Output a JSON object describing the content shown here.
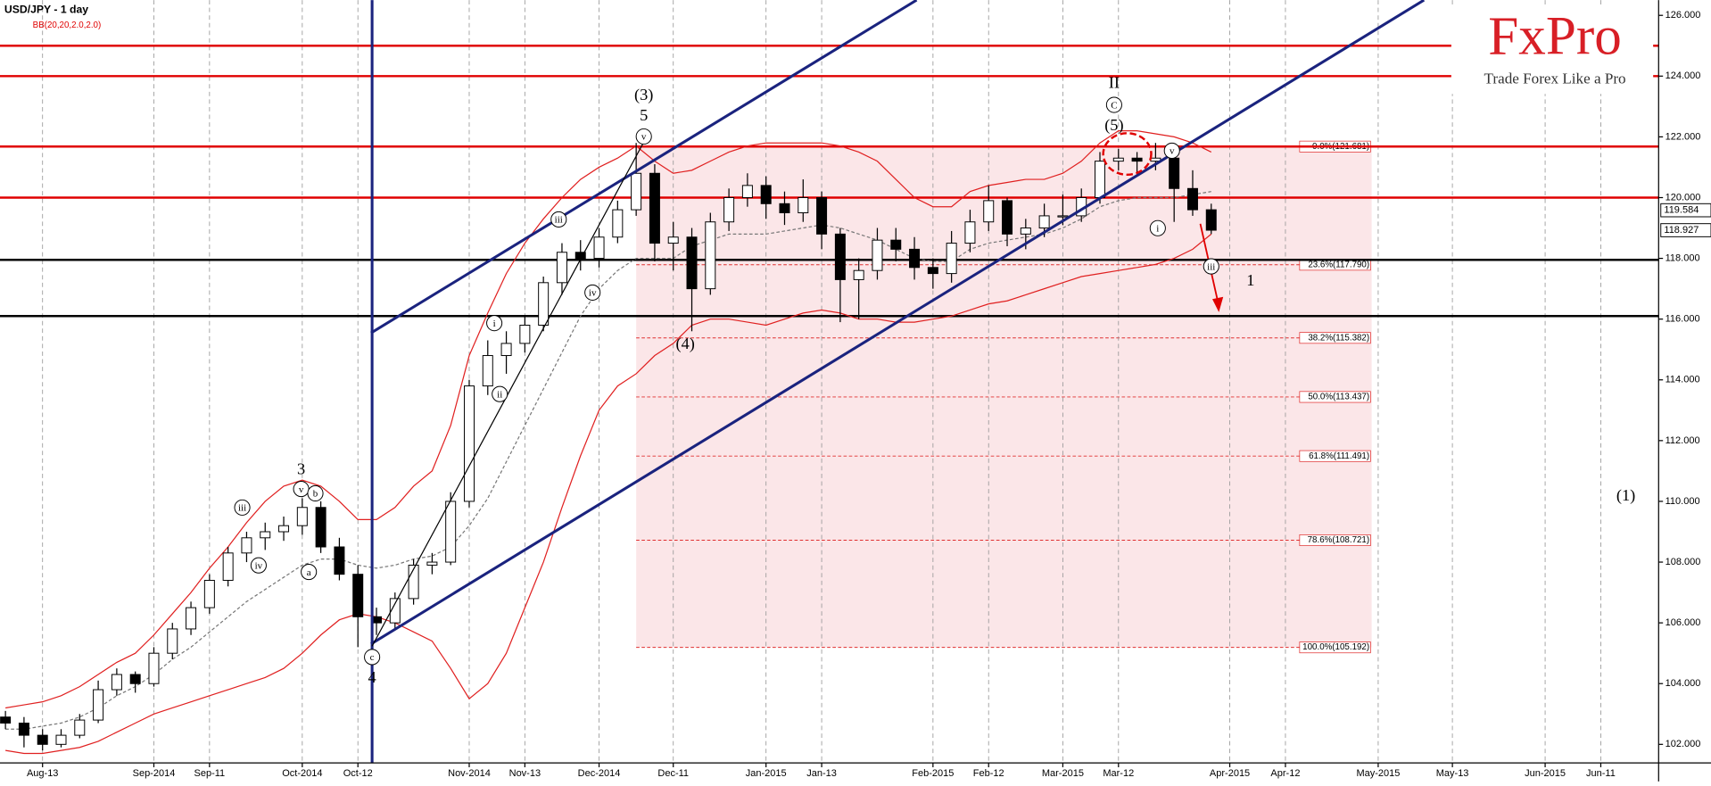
{
  "chart_data": {
    "type": "candlestick",
    "title": "USD/JPY - 1 day",
    "indicator_label": "BB(20,20,2.0,2.0)",
    "logo": "FxPro",
    "slogan": "Trade Forex Like a Pro",
    "up_color": "#ffffff",
    "down_color": "#000000",
    "band_color": "#e02020",
    "grid": true,
    "categories": [
      null,
      null,
      "Aug-13",
      null,
      null,
      null,
      null,
      null,
      "Sep-2014",
      null,
      null,
      "Sep-11",
      null,
      null,
      null,
      null,
      "Oct-2014",
      null,
      null,
      "Oct-12",
      null,
      null,
      null,
      null,
      null,
      "Nov-2014",
      null,
      null,
      "Nov-13",
      null,
      null,
      null,
      "Dec-2014",
      null,
      null,
      null,
      "Dec-11",
      null,
      null,
      null,
      null,
      "Jan-2015",
      null,
      null,
      "Jan-13",
      null,
      null,
      null,
      null,
      null,
      "Feb-2015",
      null,
      null,
      "Feb-12",
      null,
      null,
      null,
      "Mar-2015",
      null,
      null,
      "Mar-12",
      null,
      null,
      null,
      null,
      null,
      "Apr-2015",
      null,
      null,
      "Apr-12",
      null,
      null,
      null,
      null,
      "May-2015",
      null,
      null,
      null,
      "May-13",
      null,
      null,
      null,
      null,
      "Jun-2015",
      null,
      null,
      "Jun-11",
      null
    ],
    "ohlc": [
      [
        102.9,
        103.1,
        102.5,
        102.7
      ],
      [
        102.7,
        102.9,
        101.9,
        102.3
      ],
      [
        102.3,
        102.5,
        101.8,
        102.0
      ],
      [
        102.0,
        102.5,
        101.9,
        102.3
      ],
      [
        102.3,
        103.0,
        102.2,
        102.8
      ],
      [
        102.8,
        104.1,
        102.7,
        103.8
      ],
      [
        103.8,
        104.5,
        103.6,
        104.3
      ],
      [
        104.3,
        104.4,
        103.7,
        104.0
      ],
      [
        104.0,
        105.2,
        103.9,
        105.0
      ],
      [
        105.0,
        106.0,
        104.8,
        105.8
      ],
      [
        105.8,
        106.7,
        105.6,
        106.5
      ],
      [
        106.5,
        107.6,
        106.3,
        107.4
      ],
      [
        107.4,
        108.5,
        107.2,
        108.3
      ],
      [
        108.3,
        109.0,
        108.0,
        108.8
      ],
      [
        108.8,
        109.3,
        108.4,
        109.0
      ],
      [
        109.0,
        109.5,
        108.7,
        109.2
      ],
      [
        109.2,
        110.1,
        108.9,
        109.8
      ],
      [
        109.8,
        110.0,
        108.3,
        108.5
      ],
      [
        108.5,
        108.8,
        107.4,
        107.6
      ],
      [
        107.6,
        107.9,
        105.2,
        106.2
      ],
      [
        106.2,
        106.5,
        105.6,
        106.0
      ],
      [
        106.0,
        107.0,
        105.8,
        106.8
      ],
      [
        106.8,
        108.1,
        106.6,
        107.9
      ],
      [
        107.9,
        108.3,
        107.6,
        108.0
      ],
      [
        108.0,
        110.3,
        107.9,
        110.0
      ],
      [
        110.0,
        114.0,
        109.8,
        113.8
      ],
      [
        113.8,
        115.3,
        113.5,
        114.8
      ],
      [
        114.8,
        115.6,
        114.2,
        115.2
      ],
      [
        115.2,
        116.1,
        114.9,
        115.8
      ],
      [
        115.8,
        117.4,
        115.6,
        117.2
      ],
      [
        117.2,
        118.5,
        116.8,
        118.2
      ],
      [
        118.2,
        118.6,
        117.6,
        118.0
      ],
      [
        118.0,
        119.0,
        117.7,
        118.7
      ],
      [
        118.7,
        119.9,
        118.5,
        119.6
      ],
      [
        119.6,
        121.8,
        119.4,
        120.8
      ],
      [
        120.8,
        121.1,
        117.9,
        118.5
      ],
      [
        118.5,
        119.2,
        117.6,
        118.7
      ],
      [
        118.7,
        119.0,
        115.6,
        117.0
      ],
      [
        117.0,
        119.5,
        116.8,
        119.2
      ],
      [
        119.2,
        120.3,
        118.9,
        120.0
      ],
      [
        120.0,
        120.8,
        119.7,
        120.4
      ],
      [
        120.4,
        120.7,
        119.3,
        119.8
      ],
      [
        119.8,
        120.2,
        119.1,
        119.5
      ],
      [
        119.5,
        120.6,
        119.2,
        120.0
      ],
      [
        120.0,
        120.2,
        118.3,
        118.8
      ],
      [
        118.8,
        119.0,
        115.9,
        117.3
      ],
      [
        117.3,
        118.0,
        116.0,
        117.6
      ],
      [
        117.6,
        119.0,
        117.3,
        118.6
      ],
      [
        118.6,
        119.0,
        117.9,
        118.3
      ],
      [
        118.3,
        118.7,
        117.3,
        117.7
      ],
      [
        117.7,
        118.0,
        117.0,
        117.5
      ],
      [
        117.5,
        118.9,
        117.2,
        118.5
      ],
      [
        118.5,
        119.6,
        118.2,
        119.2
      ],
      [
        119.2,
        120.4,
        118.9,
        119.9
      ],
      [
        119.9,
        120.0,
        118.4,
        118.8
      ],
      [
        118.8,
        119.3,
        118.3,
        119.0
      ],
      [
        119.0,
        119.8,
        118.7,
        119.4
      ],
      [
        119.4,
        120.1,
        119.1,
        119.4
      ],
      [
        119.4,
        120.3,
        119.2,
        120.0
      ],
      [
        120.0,
        121.5,
        119.8,
        121.2
      ],
      [
        121.2,
        121.6,
        120.9,
        121.3
      ],
      [
        121.3,
        121.5,
        120.8,
        121.2
      ],
      [
        121.2,
        121.8,
        120.9,
        121.3
      ],
      [
        121.3,
        121.4,
        119.2,
        120.3
      ],
      [
        120.3,
        120.9,
        119.4,
        119.6
      ],
      [
        119.6,
        119.8,
        118.8,
        118.927
      ],
      null,
      null,
      null,
      null,
      null,
      null,
      null,
      null,
      null,
      null,
      null,
      null,
      null,
      null,
      null,
      null,
      null,
      null,
      null,
      null,
      null,
      null
    ],
    "bands": [
      {
        "color": "#e02020",
        "dash": false,
        "values": [
          103.2,
          103.3,
          103.4,
          103.6,
          103.9,
          104.3,
          104.7,
          105.0,
          105.6,
          106.3,
          107.0,
          107.8,
          108.5,
          109.3,
          110.0,
          110.5,
          110.7,
          110.5,
          110.0,
          109.4,
          109.4,
          109.8,
          110.5,
          111.0,
          112.5,
          114.8,
          116.2,
          117.5,
          118.5,
          119.3,
          120.0,
          120.6,
          121.0,
          121.3,
          121.7,
          121.2,
          120.8,
          120.9,
          121.2,
          121.5,
          121.7,
          121.8,
          121.8,
          121.8,
          121.8,
          121.7,
          121.5,
          121.2,
          120.6,
          120.0,
          119.7,
          119.7,
          120.2,
          120.4,
          120.5,
          120.6,
          120.6,
          120.8,
          121.2,
          121.8,
          122.2,
          122.2,
          122.1,
          122.0,
          121.8,
          121.5,
          null,
          null,
          null,
          null,
          null,
          null,
          null,
          null,
          null,
          null,
          null,
          null,
          null,
          null,
          null,
          null,
          null,
          null,
          null,
          null,
          null,
          null
        ]
      },
      {
        "color": "#777777",
        "dash": true,
        "values": [
          102.5,
          102.5,
          102.6,
          102.7,
          102.9,
          103.2,
          103.6,
          103.9,
          104.3,
          104.8,
          105.2,
          105.7,
          106.2,
          106.7,
          107.1,
          107.5,
          107.9,
          108.1,
          108.1,
          107.9,
          107.8,
          107.9,
          108.1,
          108.2,
          108.5,
          109.2,
          110.1,
          111.3,
          112.5,
          113.7,
          114.9,
          116.1,
          117.0,
          117.6,
          118.0,
          118.0,
          118.0,
          118.4,
          118.6,
          118.8,
          118.8,
          118.8,
          118.9,
          119.0,
          119.1,
          119.0,
          118.8,
          118.6,
          118.3,
          118.0,
          117.9,
          117.9,
          118.3,
          118.5,
          118.6,
          118.7,
          118.8,
          119.0,
          119.3,
          119.7,
          119.9,
          120.0,
          120.0,
          120.0,
          120.1,
          120.2,
          null,
          null,
          null,
          null,
          null,
          null,
          null,
          null,
          null,
          null,
          null,
          null,
          null,
          null,
          null,
          null,
          null,
          null,
          null,
          null,
          null,
          null
        ]
      },
      {
        "color": "#e02020",
        "dash": false,
        "values": [
          101.8,
          101.7,
          101.7,
          101.8,
          101.9,
          102.1,
          102.4,
          102.7,
          103.0,
          103.2,
          103.4,
          103.6,
          103.8,
          104.0,
          104.2,
          104.5,
          105.0,
          105.6,
          106.1,
          106.3,
          106.2,
          106.0,
          105.7,
          105.4,
          104.5,
          103.5,
          104.0,
          105.0,
          106.5,
          108.0,
          109.8,
          111.5,
          113.0,
          113.8,
          114.2,
          114.8,
          115.2,
          115.8,
          116.0,
          116.0,
          115.9,
          115.8,
          116.0,
          116.2,
          116.3,
          116.2,
          116.0,
          116.0,
          115.9,
          115.9,
          116.0,
          116.1,
          116.3,
          116.5,
          116.6,
          116.8,
          117.0,
          117.2,
          117.4,
          117.5,
          117.6,
          117.7,
          117.8,
          118.0,
          118.3,
          118.8,
          null,
          null,
          null,
          null,
          null,
          null,
          null,
          null,
          null,
          null,
          null,
          null,
          null,
          null,
          null,
          null,
          null,
          null,
          null,
          null,
          null,
          null
        ]
      }
    ],
    "horizontal_lines": [
      {
        "value": 125.0,
        "color": "#e00000"
      },
      {
        "value": 124.0,
        "color": "#e00000"
      },
      {
        "value": 121.681,
        "color": "#e00000"
      },
      {
        "value": 120.0,
        "color": "#e00000"
      },
      {
        "value": 117.95,
        "color": "#000000"
      },
      {
        "value": 116.1,
        "color": "#000000"
      }
    ],
    "fib_levels": [
      {
        "value": 121.681,
        "label": "0.0%(121.681)"
      },
      {
        "value": 117.79,
        "label": "23.6%(117.790)"
      },
      {
        "value": 115.382,
        "label": "38.2%(115.382)"
      },
      {
        "value": 113.437,
        "label": "50.0%(113.437)"
      },
      {
        "value": 111.491,
        "label": "61.8%(111.491)"
      },
      {
        "value": 108.721,
        "label": "78.6%(108.721)"
      },
      {
        "value": 105.192,
        "label": "100.0%(105.192)"
      }
    ],
    "price_labels": [
      119.584,
      118.927
    ],
    "ylim": [
      101.5,
      126.5
    ],
    "yticks": [
      {
        "value": 102,
        "label": "102.000"
      },
      {
        "value": 104,
        "label": "104.000"
      },
      {
        "value": 106,
        "label": "106.000"
      },
      {
        "value": 108,
        "label": "108.000"
      },
      {
        "value": 110,
        "label": "110.000"
      },
      {
        "value": 112,
        "label": "112.000"
      },
      {
        "value": 114,
        "label": "114.000"
      },
      {
        "value": 116,
        "label": "116.000"
      },
      {
        "value": 118,
        "label": "118.000"
      },
      {
        "value": 120,
        "label": "120.000"
      },
      {
        "value": 122,
        "label": "122.000"
      },
      {
        "value": 124,
        "label": "124.000"
      },
      {
        "value": 126,
        "label": "126.000"
      }
    ],
    "annotations": [
      "(3)",
      "5",
      "v",
      "(4)",
      "3",
      "v",
      "b",
      "a",
      "iii",
      "iv",
      "iii",
      "iv",
      "i",
      "ii",
      "c",
      "4",
      "II",
      "C",
      "(5)",
      "v",
      "i",
      "iii",
      "1",
      "(1)"
    ]
  }
}
